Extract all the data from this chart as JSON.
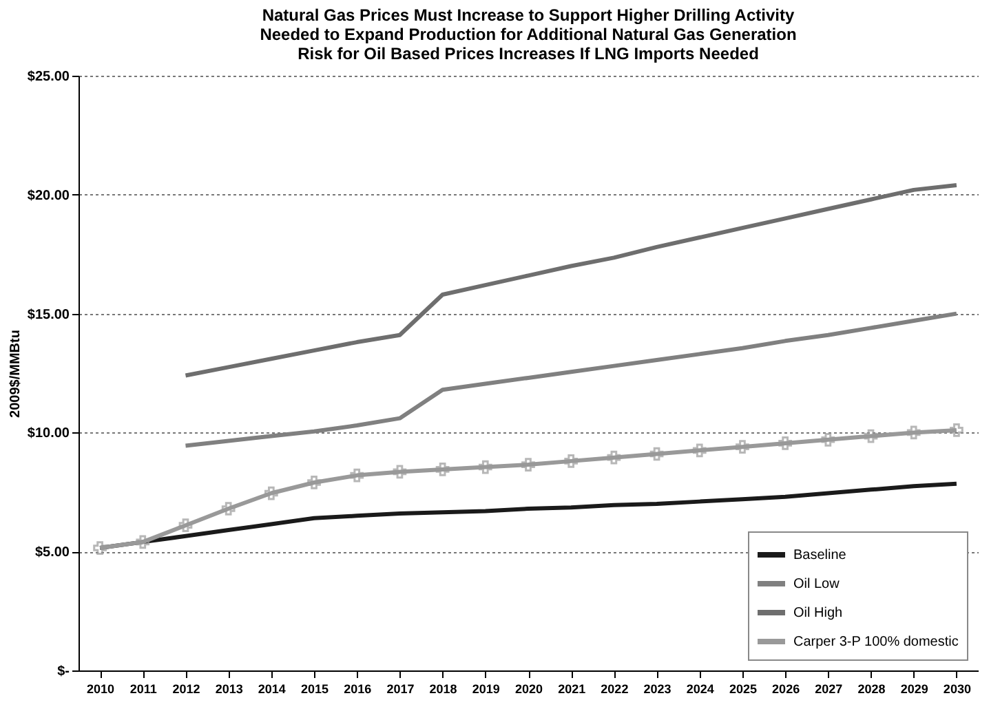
{
  "chart_data": {
    "type": "line",
    "title": "Natural Gas Prices Must Increase to Support Higher Drilling Activity\nNeeded to Expand Production for Additional Natural Gas Generation\nRisk for Oil Based Prices Increases If LNG Imports Needed",
    "ylabel": "2009$/MMBtu",
    "categories": [
      "2010",
      "2011",
      "2012",
      "2013",
      "2014",
      "2015",
      "2016",
      "2017",
      "2018",
      "2019",
      "2020",
      "2021",
      "2022",
      "2023",
      "2024",
      "2025",
      "2026",
      "2027",
      "2028",
      "2029",
      "2030"
    ],
    "ylim": [
      0,
      25
    ],
    "yticks": [
      {
        "value": 0,
        "label": "$-"
      },
      {
        "value": 5,
        "label": "$5.00"
      },
      {
        "value": 10,
        "label": "$10.00"
      },
      {
        "value": 15,
        "label": "$15.00"
      },
      {
        "value": 20,
        "label": "$20.00"
      },
      {
        "value": 25,
        "label": "$25.00"
      }
    ],
    "grid": "y",
    "legend": "bottom right",
    "marker": "none",
    "line_style": "solid",
    "series": [
      {
        "name": "Baseline",
        "color": "#1a1a1a",
        "values": [
          5.15,
          5.4,
          5.65,
          5.9,
          6.15,
          6.4,
          6.5,
          6.6,
          6.65,
          6.7,
          6.8,
          6.85,
          6.95,
          7.0,
          7.1,
          7.2,
          7.3,
          7.45,
          7.6,
          7.75,
          7.85
        ]
      },
      {
        "name": "Oil Low",
        "color": "#808080",
        "values": [
          null,
          null,
          9.45,
          9.65,
          9.85,
          10.05,
          10.3,
          10.6,
          11.8,
          12.05,
          12.3,
          12.55,
          12.8,
          13.05,
          13.3,
          13.55,
          13.85,
          14.1,
          14.4,
          14.7,
          15.0
        ]
      },
      {
        "name": "Oil High",
        "color": "#6e6e6e",
        "values": [
          null,
          null,
          12.4,
          12.75,
          13.1,
          13.45,
          13.8,
          14.1,
          15.8,
          16.2,
          16.6,
          17.0,
          17.35,
          17.8,
          18.2,
          18.6,
          19.0,
          19.4,
          19.8,
          20.2,
          20.4
        ]
      },
      {
        "name": "Carper 3-P 100% domestic",
        "color": "#999999",
        "marker": "cross",
        "values": [
          5.15,
          5.4,
          6.1,
          6.8,
          7.45,
          7.9,
          8.2,
          8.35,
          8.45,
          8.55,
          8.65,
          8.8,
          8.95,
          9.1,
          9.25,
          9.4,
          9.55,
          9.7,
          9.85,
          10.0,
          10.1
        ]
      }
    ]
  }
}
